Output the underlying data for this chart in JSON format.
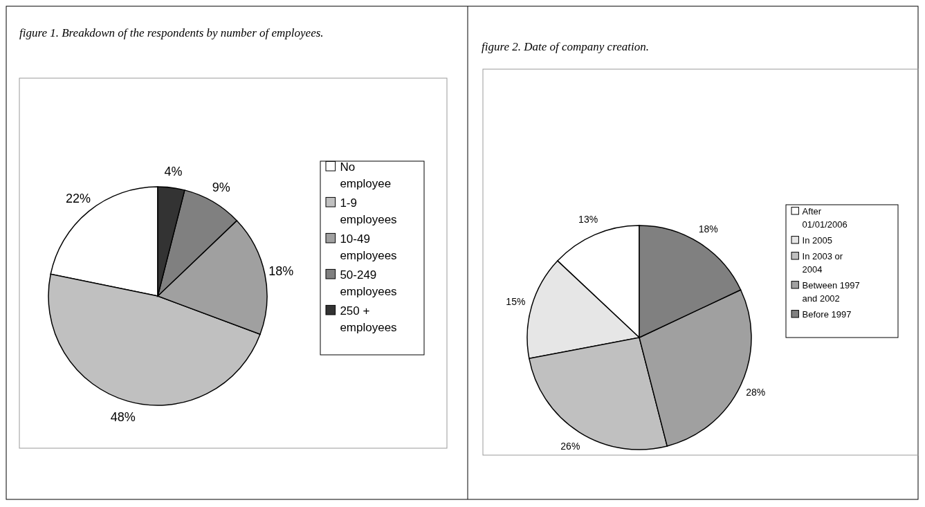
{
  "chart_data": [
    {
      "type": "pie",
      "title": "figure 1. Breakdown of the respondents by number of employees.",
      "categories": [
        "No employee",
        "1-9 employees",
        "10-49 employees",
        "50-249 employees",
        "250 + employees"
      ],
      "values": [
        22,
        48,
        18,
        9,
        4
      ],
      "value_labels": [
        "22%",
        "48%",
        "18%",
        "9%",
        "4%"
      ],
      "colors": [
        "#ffffff",
        "#c0c0c0",
        "#a0a0a0",
        "#808080",
        "#333333"
      ],
      "legend": "right"
    },
    {
      "type": "pie",
      "title": "figure 2. Date of company creation.",
      "categories": [
        "After 01/01/2006",
        "In 2005",
        "In 2003 or 2004",
        "Between 1997 and 2002",
        "Before 1997"
      ],
      "values": [
        13,
        15,
        26,
        28,
        18
      ],
      "value_labels": [
        "13%",
        "15%",
        "26%",
        "28%",
        "18%"
      ],
      "colors": [
        "#ffffff",
        "#e6e6e6",
        "#c0c0c0",
        "#a0a0a0",
        "#808080"
      ],
      "legend": "right"
    }
  ]
}
